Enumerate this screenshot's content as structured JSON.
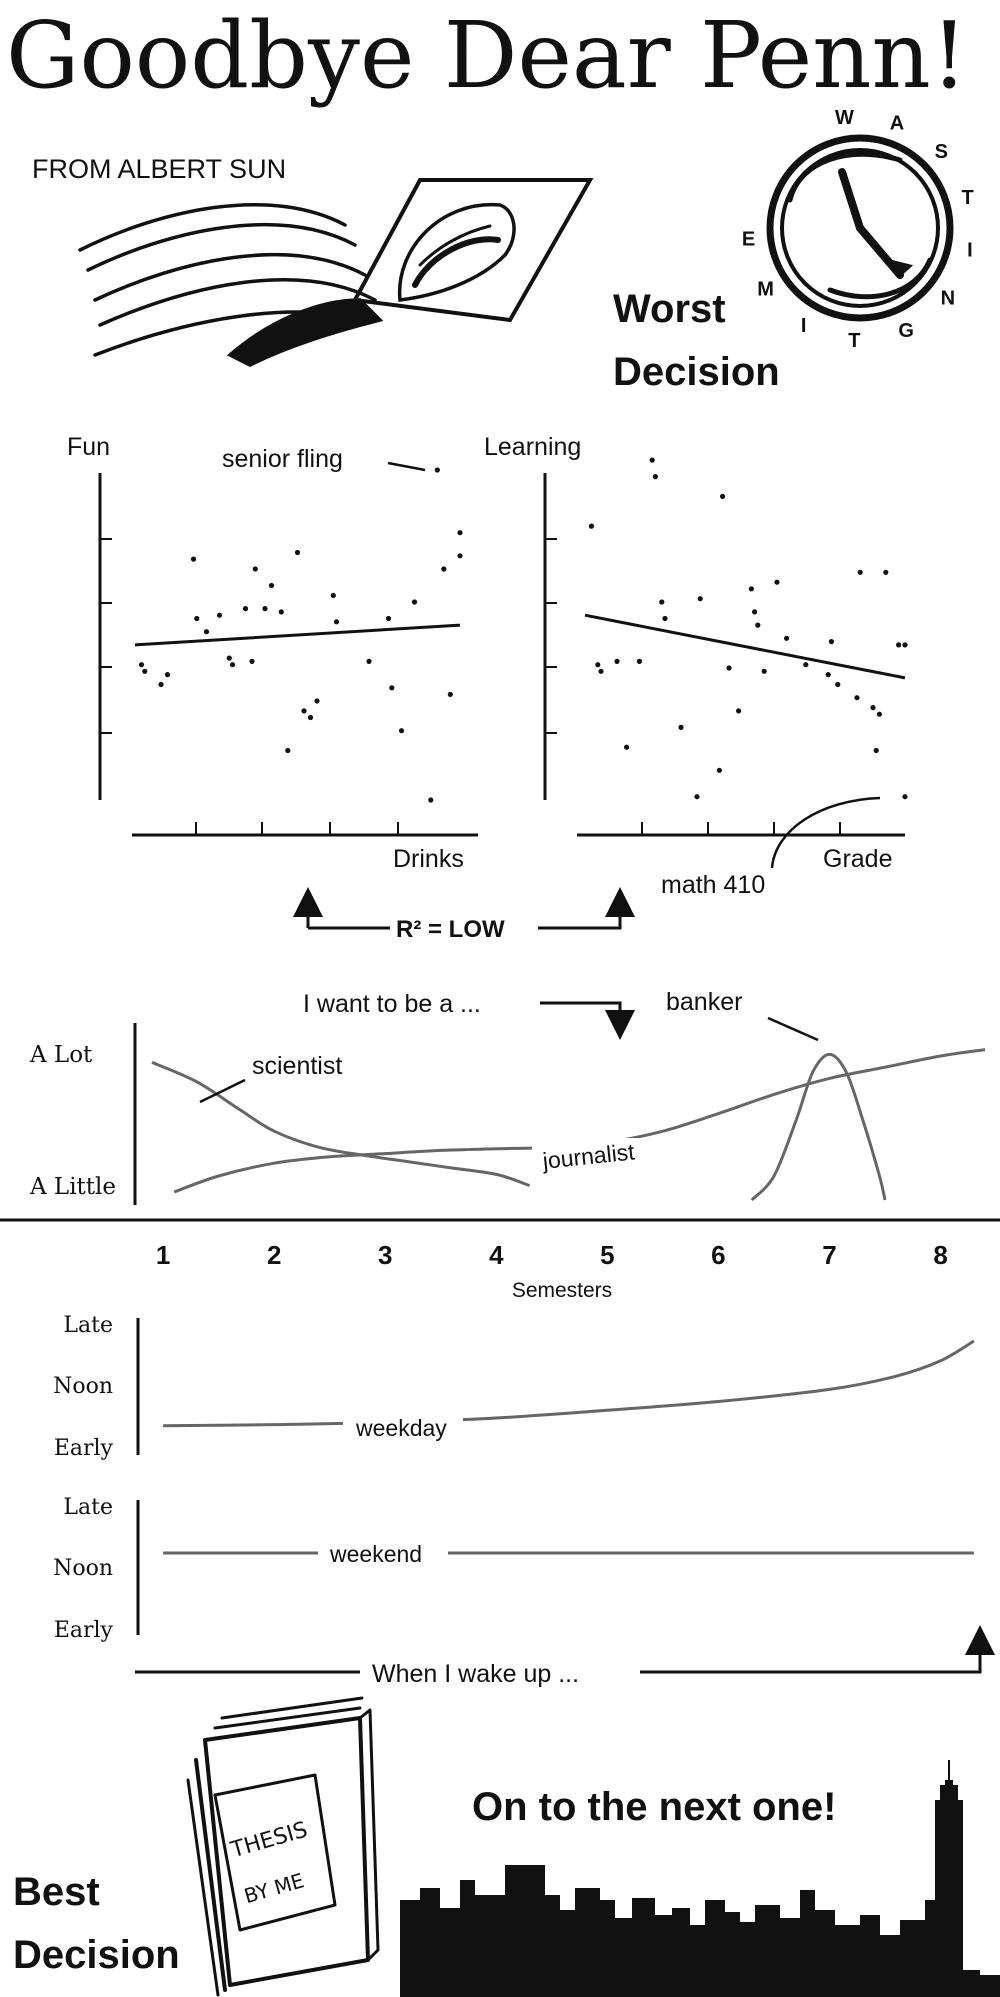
{
  "title": "Goodbye Dear Penn!",
  "byline": "FROM ALBERT SUN",
  "worst": {
    "label_line1": "Worst",
    "label_line2": "Decision",
    "dial_letters": [
      "W",
      "A",
      "S",
      "T",
      "I",
      "N",
      "G",
      "T",
      "I",
      "M",
      "E"
    ]
  },
  "best": {
    "label_line1": "Best",
    "label_line2": "Decision",
    "thesis_line1": "THESIS",
    "thesis_line2": "BY ME"
  },
  "next_label": "On to the next one!",
  "r2_label": "R² = LOW",
  "career_caption": "I want to be a ...",
  "wake_caption": "When I wake up ...",
  "chart_data": [
    {
      "type": "scatter",
      "ylabel": "Fun",
      "xlabel": "Drinks",
      "xlim": [
        0,
        10
      ],
      "ylim": [
        0,
        10
      ],
      "annotation": "senior fling",
      "trend": [
        [
          0,
          4.7
        ],
        [
          10,
          5.3
        ]
      ],
      "points": [
        [
          0.2,
          4.1
        ],
        [
          0.3,
          3.9
        ],
        [
          0.8,
          3.5
        ],
        [
          1.0,
          3.8
        ],
        [
          1.8,
          7.3
        ],
        [
          1.9,
          5.5
        ],
        [
          2.2,
          5.1
        ],
        [
          2.6,
          5.6
        ],
        [
          2.9,
          4.3
        ],
        [
          3.0,
          4.1
        ],
        [
          3.4,
          5.8
        ],
        [
          3.6,
          4.2
        ],
        [
          3.7,
          7.0
        ],
        [
          4.0,
          5.8
        ],
        [
          4.2,
          6.5
        ],
        [
          4.5,
          5.7
        ],
        [
          4.7,
          1.5
        ],
        [
          5.0,
          7.5
        ],
        [
          5.2,
          2.7
        ],
        [
          5.4,
          2.5
        ],
        [
          5.6,
          3.0
        ],
        [
          6.1,
          6.2
        ],
        [
          6.2,
          5.4
        ],
        [
          7.2,
          4.2
        ],
        [
          7.8,
          5.5
        ],
        [
          7.9,
          3.4
        ],
        [
          8.2,
          2.1
        ],
        [
          8.6,
          6.0
        ],
        [
          9.1,
          0.0
        ],
        [
          9.3,
          10.0
        ],
        [
          9.5,
          7.0
        ],
        [
          9.7,
          3.2
        ],
        [
          10.0,
          7.4
        ],
        [
          10.0,
          8.1
        ]
      ]
    },
    {
      "type": "scatter",
      "ylabel": "Learning",
      "xlabel": "Grade",
      "xlim": [
        0,
        10
      ],
      "ylim": [
        0,
        10
      ],
      "annotation": "math 410",
      "trend": [
        [
          0,
          5.6
        ],
        [
          10,
          3.7
        ]
      ],
      "points": [
        [
          0.2,
          8.3
        ],
        [
          0.4,
          4.1
        ],
        [
          0.5,
          3.9
        ],
        [
          1.0,
          4.2
        ],
        [
          1.3,
          1.6
        ],
        [
          1.7,
          4.2
        ],
        [
          2.1,
          10.3
        ],
        [
          2.2,
          9.8
        ],
        [
          2.4,
          6.0
        ],
        [
          2.5,
          5.5
        ],
        [
          3.0,
          2.2
        ],
        [
          3.5,
          0.1
        ],
        [
          3.6,
          6.1
        ],
        [
          4.2,
          0.9
        ],
        [
          4.3,
          9.2
        ],
        [
          4.5,
          4.0
        ],
        [
          4.8,
          2.7
        ],
        [
          5.2,
          6.4
        ],
        [
          5.3,
          5.7
        ],
        [
          5.4,
          5.3
        ],
        [
          5.6,
          3.9
        ],
        [
          6.0,
          6.6
        ],
        [
          6.3,
          4.9
        ],
        [
          6.9,
          4.1
        ],
        [
          7.6,
          3.8
        ],
        [
          7.7,
          4.8
        ],
        [
          7.9,
          3.5
        ],
        [
          8.5,
          3.1
        ],
        [
          8.6,
          6.9
        ],
        [
          9.0,
          2.8
        ],
        [
          9.1,
          1.5
        ],
        [
          9.2,
          2.6
        ],
        [
          9.4,
          6.9
        ],
        [
          9.8,
          4.7
        ],
        [
          10.0,
          0.1
        ],
        [
          10.0,
          4.7
        ]
      ]
    },
    {
      "type": "line",
      "ylabel": "",
      "y_ticks": [
        "A Lot",
        "A Little"
      ],
      "xlabel": "Semesters",
      "categories": [
        "1",
        "2",
        "3",
        "4",
        "5",
        "6",
        "7",
        "8"
      ],
      "xlim": [
        0.9,
        8.4
      ],
      "ylim": [
        0,
        10
      ],
      "series": [
        {
          "name": "scientist",
          "points": [
            [
              0.9,
              8.6
            ],
            [
              1.3,
              7.4
            ],
            [
              1.7,
              5.6
            ],
            [
              2.0,
              4.3
            ],
            [
              2.4,
              3.3
            ],
            [
              2.8,
              2.8
            ],
            [
              3.2,
              2.4
            ],
            [
              3.6,
              2.0
            ],
            [
              4.0,
              1.6
            ],
            [
              4.3,
              0.9
            ]
          ]
        },
        {
          "name": "journalist",
          "points": [
            [
              1.1,
              0.5
            ],
            [
              1.5,
              1.5
            ],
            [
              2.0,
              2.3
            ],
            [
              2.5,
              2.7
            ],
            [
              3.0,
              2.9
            ],
            [
              3.5,
              3.1
            ],
            [
              4.0,
              3.2
            ],
            [
              4.5,
              3.3
            ],
            [
              5.0,
              3.6
            ],
            [
              5.5,
              4.3
            ],
            [
              6.0,
              5.4
            ],
            [
              6.5,
              6.6
            ],
            [
              7.0,
              7.6
            ],
            [
              7.5,
              8.3
            ],
            [
              8.0,
              9.0
            ],
            [
              8.4,
              9.4
            ]
          ]
        },
        {
          "name": "banker",
          "points": [
            [
              6.3,
              0.0
            ],
            [
              6.5,
              1.5
            ],
            [
              6.7,
              5.0
            ],
            [
              6.85,
              8.0
            ],
            [
              7.0,
              9.1
            ],
            [
              7.15,
              8.0
            ],
            [
              7.3,
              5.0
            ],
            [
              7.45,
              1.5
            ],
            [
              7.5,
              0.0
            ]
          ]
        }
      ]
    },
    {
      "type": "line",
      "ylabel": "",
      "y_ticks": [
        "Late",
        "Noon",
        "Early"
      ],
      "xlim": [
        0.9,
        8.4
      ],
      "ylim": [
        0,
        10
      ],
      "series": [
        {
          "name": "weekday",
          "points": [
            [
              1.0,
              1.3
            ],
            [
              2.0,
              1.4
            ],
            [
              3.0,
              1.6
            ],
            [
              4.0,
              2.0
            ],
            [
              5.0,
              2.7
            ],
            [
              6.0,
              3.5
            ],
            [
              7.0,
              4.6
            ],
            [
              7.6,
              5.8
            ],
            [
              8.0,
              7.2
            ],
            [
              8.3,
              9.0
            ]
          ]
        }
      ]
    },
    {
      "type": "line",
      "ylabel": "",
      "y_ticks": [
        "Late",
        "Noon",
        "Early"
      ],
      "xlim": [
        0.9,
        8.4
      ],
      "ylim": [
        0,
        10
      ],
      "series": [
        {
          "name": "weekend",
          "points": [
            [
              1.0,
              5.0
            ],
            [
              8.3,
              5.0
            ]
          ]
        }
      ]
    }
  ],
  "colors": {
    "ink": "#111111",
    "curve": "#666666"
  }
}
